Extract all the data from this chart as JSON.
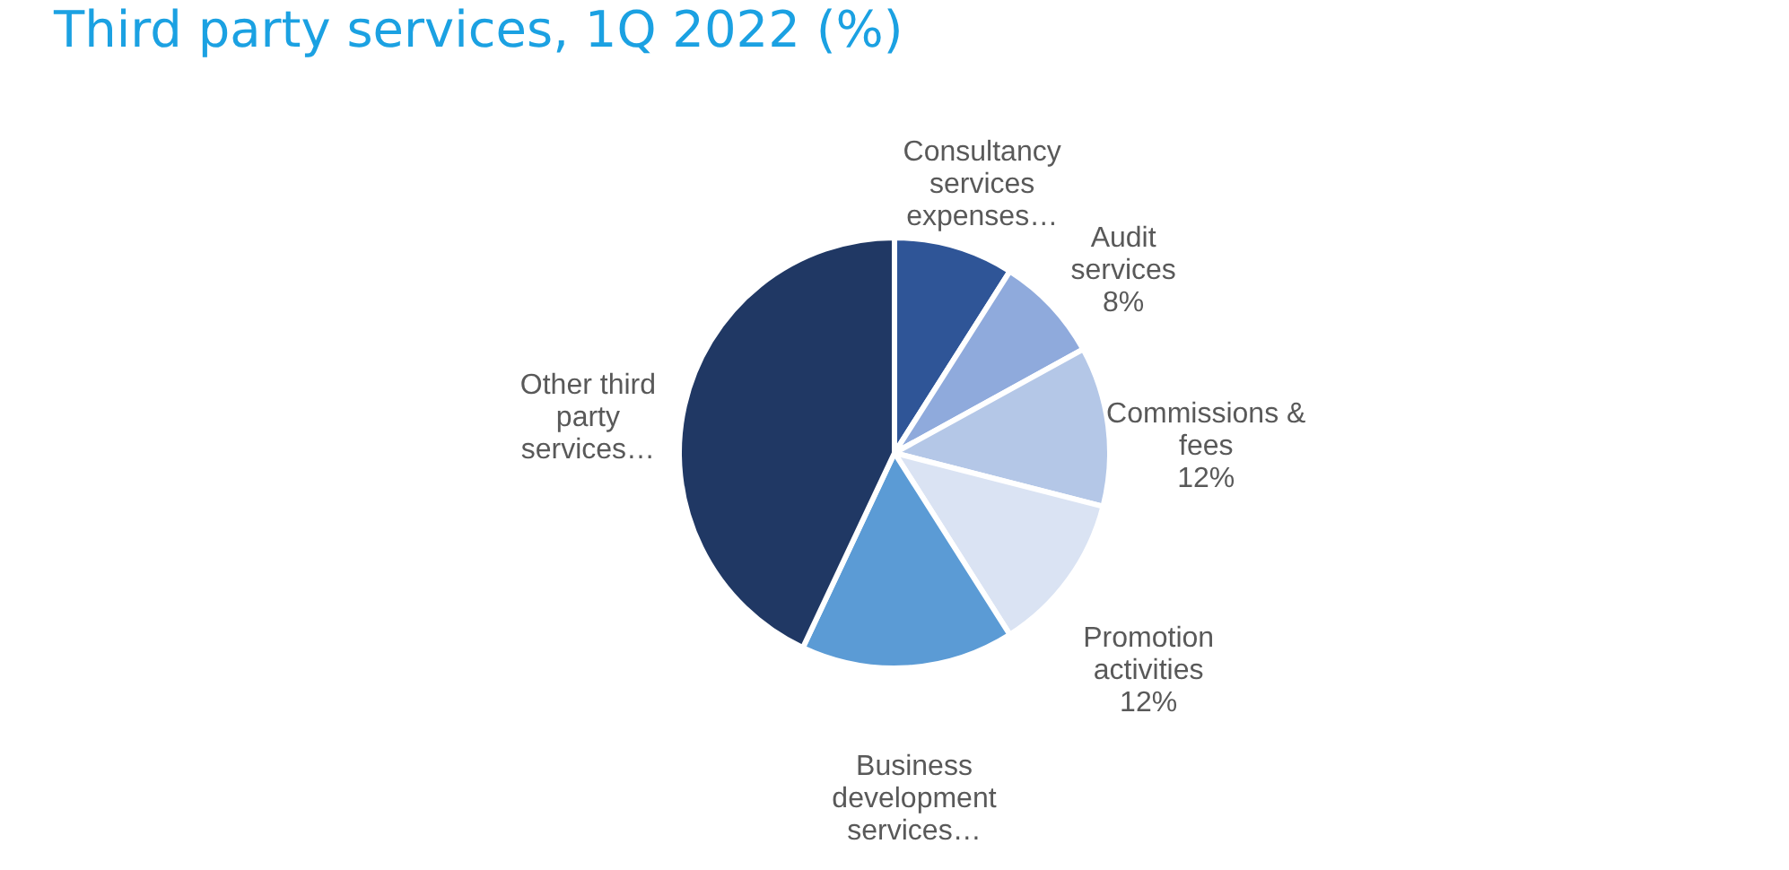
{
  "chart_data": {
    "type": "pie",
    "title": "Third party services, 1Q 2022 (%)",
    "categories": [
      "Consultancy services expenses…",
      "Audit services",
      "Commissions & fees",
      "Promotion activities",
      "Business development services…",
      "Other third party services…"
    ],
    "values": [
      9,
      8,
      12,
      12,
      16,
      43
    ],
    "value_labels": [
      null,
      "8%",
      "12%",
      "12%",
      null,
      null
    ],
    "colors": [
      "#2f5597",
      "#8faadc",
      "#b4c7e7",
      "#dae3f3",
      "#5b9bd5",
      "#203864"
    ]
  }
}
